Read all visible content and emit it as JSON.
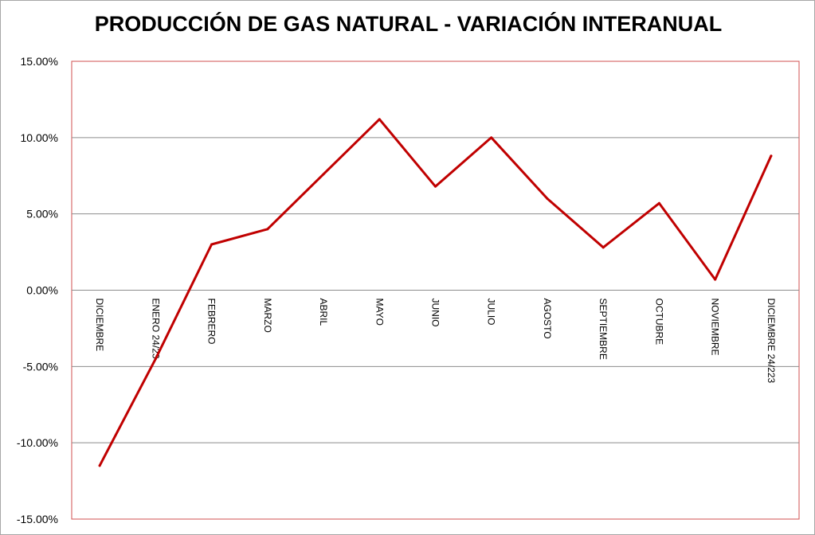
{
  "chart_data": {
    "type": "line",
    "title": "PRODUCCIÓN DE GAS NATURAL - VARIACIÓN INTERANUAL",
    "xlabel": "",
    "ylabel": "",
    "categories": [
      "DICIEMBRE",
      "ENERO 24/23",
      "FEBRERO",
      "MARZO",
      "ABRIL",
      "MAYO",
      "JUNIO",
      "JULIO",
      "AGOSTO",
      "SEPTIEMBRE",
      "OCTUBRE",
      "NOVIEMBRE",
      "DICIEMBRE 24/223"
    ],
    "series": [
      {
        "values": [
          -11.5,
          -4.5,
          3.0,
          4.0,
          7.6,
          11.2,
          6.8,
          10.0,
          6.0,
          2.8,
          5.7,
          0.7,
          8.8
        ]
      }
    ],
    "ylim": [
      -15,
      15
    ],
    "yticks": [
      -15,
      -10,
      -5,
      0,
      5,
      10,
      15
    ],
    "ytick_labels": [
      "-15.00%",
      "-10.00%",
      "-5.00%",
      "0.00%",
      "5.00%",
      "10.00%",
      "15.00%"
    ],
    "grid": true,
    "legend": "none",
    "colors": {
      "line": "#c00000",
      "plot_border": "#d05050",
      "grid": "#8c8c8c"
    }
  }
}
